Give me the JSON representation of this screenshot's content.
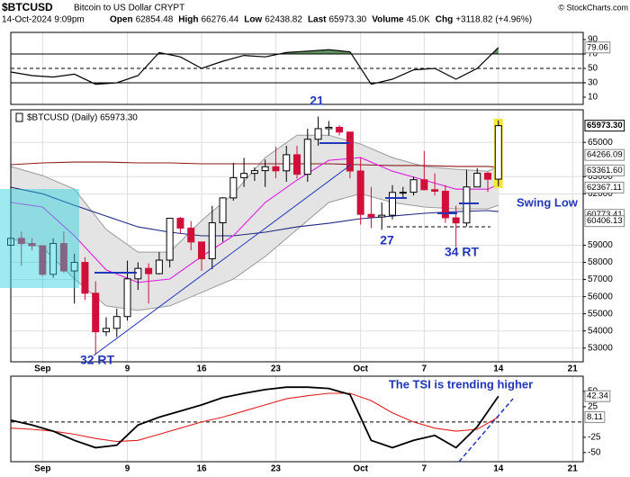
{
  "header": {
    "symbol": "$BTCUSD",
    "name": "Bitcoin to US Dollar CRYPT",
    "credit": "© StockCharts.com",
    "date": "14-Oct-2024 9:09pm",
    "stats": [
      {
        "label": "Open",
        "value": "62854.48"
      },
      {
        "label": "High",
        "value": "66276.44"
      },
      {
        "label": "Low",
        "value": "62438.82"
      },
      {
        "label": "Last",
        "value": "65973.30"
      },
      {
        "label": "Volume",
        "value": "45.0K"
      },
      {
        "label": "Chg",
        "value": "+3118.82 (+4.96%)"
      }
    ]
  },
  "chart_data": [
    {
      "type": "line",
      "color": "#000000",
      "x": [
        -3,
        -1,
        1,
        3,
        5,
        7,
        9,
        11,
        13,
        15,
        17,
        19,
        21,
        23,
        25,
        27,
        29,
        31,
        33,
        35,
        37,
        39,
        41,
        43
      ],
      "values": [
        45,
        40,
        38,
        42,
        28,
        30,
        40,
        72,
        66,
        50,
        60,
        68,
        66,
        72,
        74,
        76,
        73,
        28,
        35,
        48,
        50,
        35,
        50,
        79.06
      ],
      "ylim": [
        0,
        100
      ],
      "yticks": [
        10,
        30,
        50,
        70,
        90
      ],
      "marker_ticks": [
        79.06
      ],
      "overbought": 70,
      "midline": 50,
      "oversold": 30,
      "fill_high": "#5f8f5f",
      "fill_low": "#8f5f5f",
      "xlim": [
        -3,
        51
      ],
      "grid_x": [
        0,
        8,
        15,
        22,
        30,
        36,
        43,
        50
      ]
    },
    {
      "type": "candlestick",
      "legend": "$BTCUSD (Daily) 65973.30",
      "up_color": "#000000",
      "down_color": "#d0103a",
      "highlight_color": "#f3e640",
      "x": [
        -3,
        -2,
        -1,
        0,
        1,
        2,
        3,
        4,
        5,
        6,
        7,
        8,
        9,
        10,
        11,
        12,
        13,
        14,
        15,
        16,
        17,
        18,
        19,
        20,
        21,
        22,
        23,
        24,
        25,
        26,
        27,
        28,
        29,
        30,
        31,
        32,
        33,
        34,
        35,
        36,
        37,
        38,
        39,
        40,
        41,
        42,
        43
      ],
      "open": [
        59000,
        59400,
        59100,
        58970,
        57300,
        59100,
        57500,
        58000,
        56200,
        53950,
        54150,
        54840,
        57040,
        57650,
        57340,
        58130,
        60570,
        60000,
        59190,
        58210,
        60310,
        61760,
        62940,
        63190,
        63350,
        63580,
        63340,
        64280,
        63140,
        65180,
        65800,
        65880,
        65600,
        63330,
        60800,
        60650,
        60750,
        62080,
        62090,
        62820,
        62240,
        62150,
        60600,
        60300,
        62400,
        63200,
        62854.48
      ],
      "high": [
        61200,
        59800,
        59400,
        59000,
        59400,
        59800,
        58500,
        58300,
        56900,
        54800,
        55300,
        58100,
        58000,
        57950,
        58600,
        60600,
        60650,
        60400,
        59200,
        61300,
        61800,
        63800,
        64100,
        63550,
        64000,
        64750,
        64800,
        64800,
        65800,
        66500,
        66250,
        66000,
        65600,
        64100,
        62400,
        61500,
        62500,
        62400,
        63000,
        64500,
        63200,
        62500,
        61300,
        63400,
        63500,
        63300,
        66276.44
      ],
      "low": [
        58800,
        57800,
        58700,
        57200,
        57100,
        57400,
        55600,
        55800,
        52600,
        53700,
        53650,
        54600,
        56400,
        55600,
        57300,
        57700,
        59700,
        58700,
        57500,
        57600,
        59200,
        61600,
        62400,
        62750,
        62400,
        62900,
        62700,
        62900,
        62700,
        64800,
        65400,
        65400,
        62900,
        60200,
        60000,
        59900,
        60500,
        61700,
        61900,
        62200,
        61900,
        60300,
        58900,
        60100,
        62400,
        62100,
        62438.82
      ],
      "close": [
        59400,
        59100,
        58970,
        57300,
        59100,
        57500,
        58000,
        56200,
        53950,
        54150,
        54840,
        57040,
        57650,
        57340,
        58130,
        60570,
        60000,
        59190,
        58210,
        60310,
        61760,
        62940,
        63190,
        63350,
        63580,
        63340,
        64280,
        63140,
        65180,
        65800,
        65880,
        65600,
        63330,
        60800,
        60650,
        60750,
        62080,
        62090,
        62820,
        62240,
        62150,
        60600,
        60300,
        62400,
        63200,
        62850,
        65973.3
      ],
      "overlay_x": [
        -3,
        0,
        3,
        6,
        9,
        12,
        15,
        18,
        21,
        24,
        27,
        30,
        33,
        36,
        39,
        42,
        43
      ],
      "bands": {
        "color": "#9a9a9a",
        "fill": "#e4e4e4",
        "upper": [
          63590,
          63060,
          62270,
          59920,
          58600,
          58600,
          60440,
          62010,
          64110,
          65420,
          65420,
          64900,
          64110,
          63590,
          63430,
          63320,
          63590
        ],
        "lower": [
          59390,
          58870,
          57030,
          55460,
          55200,
          55460,
          56250,
          57030,
          58340,
          59920,
          61490,
          62010,
          61490,
          61230,
          61120,
          61120,
          61330
        ]
      },
      "moving_averages": [
        {
          "color": "#8b1a1a",
          "values": [
            63700,
            63800,
            63850,
            63850,
            63800,
            63800,
            63750,
            63750,
            63750,
            63750,
            63750,
            63700,
            63650,
            63650,
            63600,
            63600,
            63550
          ]
        },
        {
          "color": "#1f2a80",
          "values": [
            62380,
            62000,
            61330,
            60700,
            60070,
            59760,
            59550,
            59550,
            59760,
            60070,
            60280,
            60550,
            60700,
            60860,
            60960,
            61020,
            60960
          ]
        },
        {
          "color": "#e020e0",
          "values": [
            61490,
            61230,
            59550,
            57560,
            56830,
            57030,
            58340,
            59550,
            61490,
            62800,
            63950,
            64110,
            63320,
            62800,
            62270,
            62270,
            62540
          ]
        }
      ],
      "ylim": [
        52200,
        66900
      ],
      "yticks": [
        53000,
        54000,
        55000,
        56000,
        57000,
        58000,
        59000,
        62000,
        63000,
        65000
      ],
      "price_labels": [
        {
          "value": 65973.3,
          "label": "65973.30"
        },
        {
          "value": 64266.09,
          "label": "64266.09"
        },
        {
          "value": 63361.6,
          "label": "63361.60"
        },
        {
          "value": 62367.11,
          "label": "62367.11"
        },
        {
          "value": 60773.41,
          "label": "60773.41"
        },
        {
          "value": 60406.13,
          "label": "60406.13"
        }
      ],
      "xlim": [
        -3,
        51
      ],
      "xticks": [
        {
          "value": 0,
          "label": "Sep"
        },
        {
          "value": 8,
          "label": "9"
        },
        {
          "value": 15,
          "label": "16"
        },
        {
          "value": 22,
          "label": "23"
        },
        {
          "value": 30,
          "label": "Oct"
        },
        {
          "value": 36,
          "label": "7"
        },
        {
          "value": 43,
          "label": "14"
        },
        {
          "value": 50,
          "label": "21"
        }
      ],
      "annotations": [
        "21",
        "32 RT",
        "27",
        "34 RT",
        "Swing Low"
      ]
    },
    {
      "type": "line",
      "x": [
        -3,
        -1,
        1,
        3,
        5,
        7,
        9,
        11,
        13,
        15,
        17,
        19,
        21,
        23,
        25,
        27,
        29,
        31,
        33,
        35,
        37,
        39,
        41,
        43
      ],
      "series": [
        {
          "color": "#000000",
          "values": [
            3,
            -5,
            -15,
            -30,
            -42,
            -38,
            -5,
            8,
            18,
            28,
            40,
            47,
            53,
            57,
            57,
            55,
            45,
            -30,
            -42,
            -30,
            -22,
            -42,
            -8,
            42.34
          ]
        },
        {
          "color": "#e02020",
          "values": [
            -10,
            -12,
            -15,
            -20,
            -27,
            -32,
            -30,
            -20,
            -10,
            0,
            8,
            18,
            28,
            38,
            43,
            47,
            47,
            35,
            15,
            0,
            -10,
            -15,
            -12,
            8.11
          ]
        }
      ],
      "ylim": [
        -65,
        75
      ],
      "yticks": [
        -50,
        -25,
        25,
        50
      ],
      "zero_line": 0,
      "marker_ticks": [
        42.34,
        8.11
      ],
      "xlim": [
        -3,
        51
      ],
      "xticks": [
        {
          "value": 0,
          "label": "Sep"
        },
        {
          "value": 8,
          "label": "9"
        },
        {
          "value": 15,
          "label": "16"
        },
        {
          "value": 22,
          "label": "23"
        },
        {
          "value": 30,
          "label": "Oct"
        },
        {
          "value": 36,
          "label": "7"
        },
        {
          "value": 43,
          "label": "14"
        },
        {
          "value": 50,
          "label": "21"
        }
      ],
      "annotation": "The TSI is trending higher"
    }
  ]
}
